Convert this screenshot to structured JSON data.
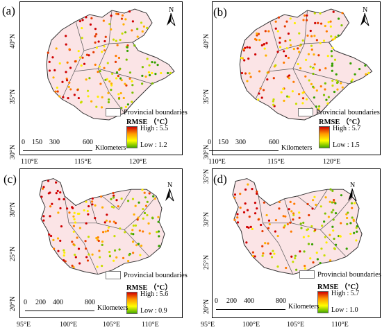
{
  "legend": {
    "province_label": "Provincial boundaries",
    "rmse_title": "RMSE （°C）",
    "scale_unit": "Kilometers"
  },
  "colors": {
    "border": "#000000",
    "fill": "#fbe4e6",
    "high": "#d00000",
    "mid": "#ffff00",
    "low": "#44aa00"
  },
  "panels": [
    {
      "letter": "(a)",
      "high": "High : 5.5",
      "low": "Low : 1.2",
      "scale_ticks": [
        "0",
        "150",
        "300",
        "600"
      ],
      "lon_labels": [
        "110°E",
        "115°E",
        "120°E"
      ],
      "lat_labels": [
        "40°N",
        "35°N",
        "30°N"
      ]
    },
    {
      "letter": "(b)",
      "high": "High : 5.7",
      "low": "Low : 1.5",
      "scale_ticks": [
        "0",
        "150",
        "300",
        "600"
      ],
      "lon_labels": [
        "110°E",
        "115°E",
        "120°E"
      ],
      "lat_labels": [
        "40°N",
        "35°N",
        "30°N"
      ]
    },
    {
      "letter": "(c)",
      "high": "High : 5.6",
      "low": "Low : 0.9",
      "scale_ticks": [
        "0",
        "200",
        "400",
        "800"
      ],
      "lon_labels": [
        "95°E",
        "100°E",
        "105°E",
        "110°E"
      ],
      "lat_labels": [
        "30°N",
        "25°N",
        "20°N"
      ]
    },
    {
      "letter": "(d)",
      "high": "High : 5.7",
      "low": "Low : 1.0",
      "scale_ticks": [
        "0",
        "200",
        "400",
        "800"
      ],
      "lon_labels": [
        "95°E",
        "100°E",
        "105°E",
        "110°E"
      ],
      "lat_labels": [
        "35°N",
        "30°N",
        "25°N",
        "20°N"
      ]
    }
  ]
}
